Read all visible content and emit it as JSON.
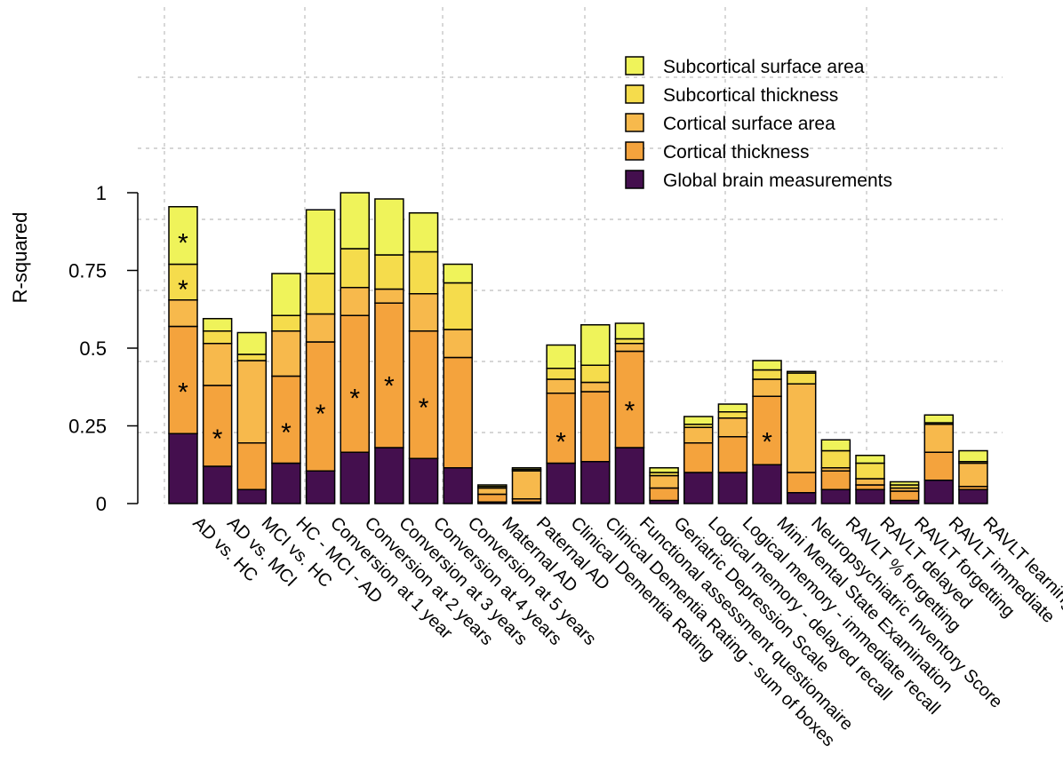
{
  "chart_data": {
    "type": "bar",
    "stacked": true,
    "title": "",
    "xlabel": "",
    "ylabel": "R-squared",
    "ylim": [
      0,
      1
    ],
    "yticks": [
      0,
      0.25,
      0.5,
      0.75,
      1
    ],
    "ytick_labels": [
      "0",
      "0.25",
      "0.5",
      "0.75",
      "1"
    ],
    "grid": true,
    "legend_position": "top-right",
    "categories": [
      "AD vs. HC",
      "AD vs. MCI",
      "MCI vs. HC",
      "HC - MCI - AD",
      "Conversion at 1 year",
      "Conversion at 2 years",
      "Conversion at 3 years",
      "Conversion at 4 years",
      "Conversion at 5 years",
      "Maternal AD",
      "Paternal AD",
      "Clinical Dementia Rating",
      "Clinical Dementia Rating - sum of boxes",
      "Functional assessment questionnaire",
      "Geriatric Depression Scale",
      "Logical memory - delayed recall",
      "Logical memory - immediate recall",
      "Mini Mental State Examination",
      "Neuropsychiatric Inventory Score",
      "RAVLT % forgetting",
      "RAVLT delayed",
      "RAVLT forgetting",
      "RAVLT immediate",
      "RAVLT learning"
    ],
    "series": [
      {
        "name": "Global brain measurements",
        "color": "#440f4e",
        "values": [
          0.225,
          0.12,
          0.045,
          0.13,
          0.105,
          0.165,
          0.18,
          0.145,
          0.115,
          0.005,
          0.005,
          0.13,
          0.135,
          0.18,
          0.01,
          0.1,
          0.1,
          0.125,
          0.035,
          0.045,
          0.045,
          0.01,
          0.075,
          0.045
        ]
      },
      {
        "name": "Cortical thickness",
        "color": "#f4a33d",
        "values": [
          0.345,
          0.26,
          0.15,
          0.28,
          0.415,
          0.44,
          0.465,
          0.41,
          0.355,
          0.025,
          0.01,
          0.225,
          0.225,
          0.31,
          0.04,
          0.095,
          0.115,
          0.22,
          0.065,
          0.06,
          0.015,
          0.03,
          0.09,
          0.01
        ]
      },
      {
        "name": "Cortical surface area",
        "color": "#f7b94c",
        "values": [
          0.085,
          0.135,
          0.265,
          0.145,
          0.09,
          0.09,
          0.045,
          0.12,
          0.09,
          0.02,
          0.09,
          0.045,
          0.03,
          0.025,
          0.04,
          0.05,
          0.06,
          0.055,
          0.285,
          0.01,
          0.02,
          0.01,
          0.09,
          0.075
        ]
      },
      {
        "name": "Subcortical thickness",
        "color": "#f5dc4c",
        "values": [
          0.115,
          0.04,
          0.02,
          0.05,
          0.13,
          0.125,
          0.11,
          0.135,
          0.15,
          0.005,
          0.005,
          0.035,
          0.055,
          0.015,
          0.01,
          0.01,
          0.02,
          0.03,
          0.035,
          0.055,
          0.05,
          0.01,
          0.005,
          0.005
        ]
      },
      {
        "name": "Subcortical surface area",
        "color": "#eff35a",
        "values": [
          0.185,
          0.04,
          0.07,
          0.135,
          0.205,
          0.18,
          0.18,
          0.125,
          0.06,
          0.005,
          0.005,
          0.075,
          0.13,
          0.05,
          0.015,
          0.025,
          0.025,
          0.03,
          0.005,
          0.035,
          0.025,
          0.01,
          0.025,
          0.035
        ]
      }
    ],
    "significance_marks": [
      {
        "category": 0,
        "value": 0.85,
        "label": "*"
      },
      {
        "category": 0,
        "value": 0.7,
        "label": "*"
      },
      {
        "category": 0,
        "value": 0.37,
        "label": "*"
      },
      {
        "category": 1,
        "value": 0.22,
        "label": "*"
      },
      {
        "category": 3,
        "value": 0.24,
        "label": "*"
      },
      {
        "category": 4,
        "value": 0.3,
        "label": "*"
      },
      {
        "category": 5,
        "value": 0.35,
        "label": "*"
      },
      {
        "category": 6,
        "value": 0.39,
        "label": "*"
      },
      {
        "category": 7,
        "value": 0.32,
        "label": "*"
      },
      {
        "category": 11,
        "value": 0.21,
        "label": "*"
      },
      {
        "category": 13,
        "value": 0.31,
        "label": "*"
      },
      {
        "category": 17,
        "value": 0.21,
        "label": "*"
      }
    ]
  }
}
